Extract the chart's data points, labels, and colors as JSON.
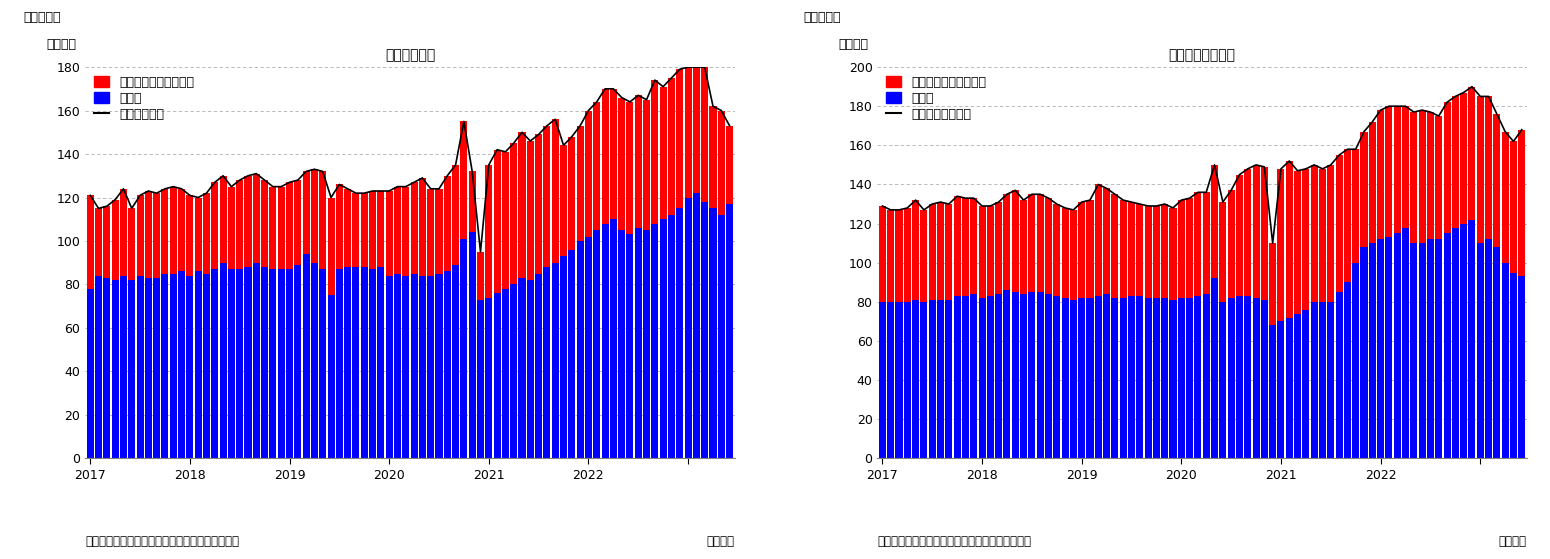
{
  "chart1": {
    "title": "住宅着工件数",
    "label_fig": "（図表１）",
    "ylabel": "（万件）",
    "ylim": [
      0,
      180
    ],
    "yticks": [
      0,
      20,
      40,
      60,
      80,
      100,
      120,
      140,
      160,
      180
    ],
    "legend_line": "住宅着工件数",
    "legend_red": "集合住宅（二戸以上）",
    "legend_blue": "戸建て",
    "source": "（資料）センサス局よりニッセイ基礎研究所作成",
    "month_label": "（月次）",
    "blue": [
      78,
      84,
      83,
      82,
      84,
      82,
      84,
      83,
      83,
      85,
      85,
      86,
      84,
      86,
      85,
      87,
      90,
      87,
      87,
      88,
      90,
      88,
      87,
      87,
      87,
      89,
      94,
      90,
      87,
      75,
      87,
      88,
      88,
      88,
      87,
      88,
      84,
      85,
      84,
      85,
      84,
      84,
      85,
      86,
      89,
      101,
      104,
      73,
      74,
      76,
      78,
      80,
      83,
      82,
      85,
      88,
      90,
      93,
      96,
      100,
      102,
      105,
      108,
      110,
      105,
      103,
      106,
      105,
      108,
      110,
      112,
      115,
      120,
      122,
      118,
      115,
      112,
      117
    ],
    "red": [
      43,
      31,
      33,
      37,
      40,
      33,
      37,
      40,
      39,
      39,
      40,
      38,
      37,
      34,
      37,
      40,
      40,
      38,
      41,
      42,
      41,
      40,
      38,
      38,
      40,
      39,
      38,
      43,
      45,
      45,
      39,
      36,
      34,
      34,
      36,
      35,
      39,
      40,
      41,
      42,
      45,
      40,
      39,
      44,
      46,
      54,
      28,
      22,
      61,
      66,
      63,
      65,
      67,
      64,
      64,
      65,
      66,
      51,
      52,
      53,
      58,
      59,
      62,
      60,
      61,
      61,
      61,
      60,
      66,
      61,
      63,
      64,
      60,
      58,
      62,
      47,
      48,
      36
    ],
    "line": [
      121,
      115,
      116,
      119,
      124,
      115,
      121,
      123,
      122,
      124,
      125,
      124,
      121,
      120,
      122,
      127,
      130,
      125,
      128,
      130,
      131,
      128,
      125,
      125,
      127,
      128,
      132,
      133,
      132,
      120,
      126,
      124,
      122,
      122,
      123,
      123,
      123,
      125,
      125,
      127,
      129,
      124,
      124,
      130,
      135,
      155,
      132,
      95,
      135,
      142,
      141,
      145,
      150,
      146,
      149,
      153,
      156,
      144,
      148,
      153,
      160,
      164,
      170,
      170,
      166,
      164,
      167,
      165,
      174,
      171,
      175,
      179,
      180,
      180,
      180,
      162,
      160,
      153
    ],
    "n_months": 78,
    "xtick_positions": [
      0,
      12,
      24,
      36,
      48,
      60,
      72
    ],
    "xtick_labels": [
      "2017",
      "2018",
      "2019",
      "2020",
      "2021",
      "2022",
      ""
    ]
  },
  "chart2": {
    "title": "住宅着工許可件数",
    "label_fig": "（図表２）",
    "ylabel": "（万件）",
    "ylim": [
      0,
      200
    ],
    "yticks": [
      0,
      20,
      40,
      60,
      80,
      100,
      120,
      140,
      160,
      180,
      200
    ],
    "legend_line": "住宅建築許可件数",
    "legend_red": "集合住宅（二戸以上）",
    "legend_blue": "戸建て",
    "source": "（資料）センサス局よりニッセイ基礎研究所作成",
    "month_label": "（月次）",
    "blue": [
      80,
      80,
      80,
      80,
      81,
      80,
      81,
      81,
      81,
      83,
      83,
      84,
      82,
      83,
      84,
      86,
      85,
      84,
      85,
      85,
      84,
      83,
      82,
      81,
      82,
      82,
      83,
      84,
      82,
      82,
      83,
      83,
      82,
      82,
      82,
      81,
      82,
      82,
      83,
      84,
      92,
      80,
      82,
      83,
      83,
      82,
      81,
      68,
      70,
      72,
      74,
      76,
      80,
      80,
      80,
      85,
      90,
      100,
      108,
      110,
      112,
      113,
      115,
      118,
      110,
      110,
      112,
      112,
      115,
      118,
      120,
      122,
      110,
      112,
      108,
      100,
      95,
      93
    ],
    "red": [
      49,
      47,
      47,
      48,
      51,
      47,
      49,
      50,
      49,
      51,
      50,
      49,
      47,
      46,
      47,
      49,
      52,
      48,
      50,
      50,
      49,
      47,
      46,
      46,
      49,
      50,
      57,
      54,
      53,
      50,
      48,
      47,
      47,
      47,
      48,
      47,
      50,
      51,
      53,
      52,
      58,
      51,
      55,
      62,
      65,
      68,
      68,
      42,
      78,
      80,
      73,
      72,
      70,
      68,
      70,
      70,
      68,
      58,
      59,
      62,
      66,
      67,
      65,
      62,
      67,
      68,
      65,
      63,
      67,
      67,
      67,
      68,
      75,
      73,
      68,
      67,
      67,
      75
    ],
    "line": [
      129,
      127,
      127,
      128,
      132,
      127,
      130,
      131,
      130,
      134,
      133,
      133,
      129,
      129,
      131,
      135,
      137,
      132,
      135,
      135,
      133,
      130,
      128,
      127,
      131,
      132,
      140,
      138,
      135,
      132,
      131,
      130,
      129,
      129,
      130,
      128,
      132,
      133,
      136,
      136,
      150,
      131,
      137,
      145,
      148,
      150,
      149,
      110,
      148,
      152,
      147,
      148,
      150,
      148,
      150,
      155,
      158,
      158,
      167,
      172,
      178,
      180,
      180,
      180,
      177,
      178,
      177,
      175,
      182,
      185,
      187,
      190,
      185,
      185,
      176,
      167,
      162,
      168
    ],
    "n_months": 78,
    "xtick_positions": [
      0,
      12,
      24,
      36,
      48,
      60,
      72
    ],
    "xtick_labels": [
      "2017",
      "2018",
      "2019",
      "2020",
      "2021",
      "2022",
      ""
    ]
  },
  "bg_color": "#ffffff",
  "red_color": "#ff0000",
  "blue_color": "#0000ff",
  "line_color": "#000000",
  "grid_color": "#b0b0b0",
  "title_fontsize": 13,
  "label_fontsize": 9,
  "tick_fontsize": 9,
  "legend_fontsize": 9,
  "source_fontsize": 8.5
}
